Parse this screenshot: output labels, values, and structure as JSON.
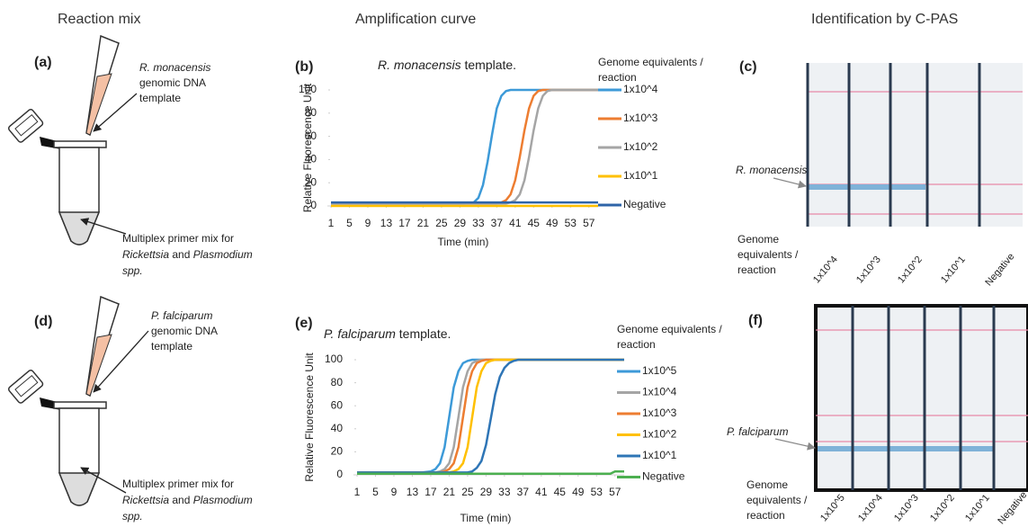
{
  "headers": {
    "reaction": "Reaction mix",
    "amplification": "Amplification curve",
    "identification": "Identification by C-PAS"
  },
  "panels": {
    "a": {
      "label": "(a)",
      "template": [
        "R. monacensis",
        "genomic DNA",
        "template"
      ],
      "primer": {
        "line1": "Multiplex primer mix for",
        "genus1": "Rickettsia",
        "and": "and",
        "genus2": "Plasmodium",
        "spp": "spp."
      }
    },
    "b": {
      "label": "(b)"
    },
    "c": {
      "label": "(c)",
      "species": "R. monacensis",
      "genome": [
        "Genome",
        "equivalents /",
        "reaction"
      ],
      "lanes": [
        "1x10^4",
        "1x10^3",
        "1x10^2",
        "1x10^1",
        "Negative"
      ]
    },
    "d": {
      "label": "(d)",
      "template": [
        "P. falciparum",
        "genomic DNA",
        "template"
      ],
      "primer": {
        "line1": "Multiplex primer mix for",
        "genus1": "Rickettsia",
        "and": "and",
        "genus2": "Plasmodium",
        "spp": "spp."
      }
    },
    "e": {
      "label": "(e)"
    },
    "f": {
      "label": "(f)",
      "species": "P. falciparum",
      "genome": [
        "Genome",
        "equivalents /",
        "reaction"
      ],
      "lanes": [
        "1x10^5",
        "1x10^4",
        "1x10^3",
        "1x10^2",
        "1x10^1",
        "Negative"
      ]
    }
  },
  "chart_data": [
    {
      "type": "line",
      "title": {
        "species": "R. monacensis",
        "text": "template."
      },
      "x_label": "Time (min)",
      "y_label": "Relative Fluorescence Unit",
      "legend_title": [
        "Genome equivalents /",
        "reaction"
      ],
      "x": [
        1,
        30,
        32,
        33,
        34,
        35,
        36,
        37,
        38,
        39,
        40,
        41,
        42,
        43,
        44,
        45,
        46,
        47,
        48,
        49,
        50,
        59
      ],
      "xlim": [
        1,
        59
      ],
      "xticks": [
        1,
        5,
        9,
        13,
        17,
        21,
        25,
        29,
        33,
        37,
        41,
        45,
        49,
        53,
        57
      ],
      "ylim": [
        0,
        100
      ],
      "yticks": [
        0,
        20,
        40,
        60,
        80,
        100
      ],
      "series": [
        {
          "name": "1x10^4",
          "color": "#3d9ad8",
          "values": [
            2,
            2,
            3,
            7,
            18,
            38,
            62,
            84,
            95,
            99,
            100,
            100,
            100,
            100,
            100,
            100,
            100,
            100,
            100,
            100,
            100,
            100
          ]
        },
        {
          "name": "1x10^3",
          "color": "#ed7d31",
          "values": [
            2,
            2,
            2,
            2,
            2,
            2,
            2,
            2,
            3,
            5,
            10,
            22,
            42,
            65,
            84,
            95,
            99,
            100,
            100,
            100,
            100,
            100
          ]
        },
        {
          "name": "1x10^2",
          "color": "#a5a5a5",
          "values": [
            2,
            2,
            2,
            2,
            2,
            2,
            2,
            2,
            2,
            2,
            3,
            5,
            10,
            22,
            42,
            65,
            84,
            95,
            99,
            100,
            100,
            100
          ]
        },
        {
          "name": "1x10^1",
          "color": "#ffc000",
          "values": [
            0,
            0,
            0,
            0,
            0,
            0,
            0,
            0,
            0,
            0,
            0,
            0,
            0,
            0,
            0,
            0,
            0,
            0,
            0,
            0,
            0,
            0
          ]
        },
        {
          "name": "Negative",
          "color": "#2e64a8",
          "values": [
            3,
            3,
            3,
            3,
            3,
            3,
            3,
            3,
            3,
            3,
            3,
            3,
            3,
            3,
            3,
            3,
            3,
            3,
            3,
            3,
            3,
            3
          ]
        }
      ]
    },
    {
      "type": "line",
      "title": {
        "species": "P. falciparum",
        "text": "template."
      },
      "x_label": "Time (min)",
      "y_label": "Relative Fluorescence Unit",
      "legend_title": [
        "Genome equivalents /",
        "reaction"
      ],
      "x": [
        1,
        15,
        17,
        18,
        19,
        20,
        21,
        22,
        23,
        24,
        25,
        26,
        27,
        28,
        29,
        30,
        31,
        32,
        33,
        34,
        35,
        36,
        37,
        56,
        57,
        59
      ],
      "xlim": [
        1,
        59
      ],
      "xticks": [
        1,
        5,
        9,
        13,
        17,
        21,
        25,
        29,
        33,
        37,
        41,
        45,
        49,
        53,
        57
      ],
      "ylim": [
        0,
        100
      ],
      "yticks": [
        0,
        20,
        40,
        60,
        80,
        100
      ],
      "series": [
        {
          "name": "1x10^5",
          "color": "#3d9ad8",
          "values": [
            2,
            2,
            3,
            5,
            10,
            24,
            50,
            76,
            90,
            97,
            99,
            100,
            100,
            100,
            100,
            100,
            100,
            100,
            100,
            100,
            100,
            100,
            100,
            100,
            100,
            100
          ]
        },
        {
          "name": "1x10^4",
          "color": "#a5a5a5",
          "values": [
            2,
            2,
            2,
            2,
            3,
            5,
            10,
            24,
            50,
            76,
            90,
            97,
            99,
            100,
            100,
            100,
            100,
            100,
            100,
            100,
            100,
            100,
            100,
            100,
            100,
            100
          ]
        },
        {
          "name": "1x10^3",
          "color": "#ed7d31",
          "values": [
            2,
            2,
            2,
            2,
            2,
            3,
            5,
            10,
            24,
            50,
            76,
            90,
            97,
            99,
            100,
            100,
            100,
            100,
            100,
            100,
            100,
            100,
            100,
            100,
            100,
            100
          ]
        },
        {
          "name": "1x10^2",
          "color": "#ffc000",
          "values": [
            2,
            2,
            2,
            2,
            2,
            2,
            2,
            3,
            5,
            10,
            24,
            50,
            76,
            90,
            97,
            99,
            100,
            100,
            100,
            100,
            100,
            100,
            100,
            100,
            100,
            100
          ]
        },
        {
          "name": "1x10^1",
          "color": "#2e75b6",
          "values": [
            2,
            2,
            2,
            2,
            2,
            2,
            2,
            2,
            2,
            2,
            2,
            3,
            6,
            12,
            26,
            48,
            70,
            85,
            93,
            97,
            99,
            100,
            100,
            100,
            100,
            100
          ]
        },
        {
          "name": "Negative",
          "color": "#4caf50",
          "values": [
            1,
            1,
            1,
            1,
            1,
            1,
            1,
            1,
            1,
            1,
            1,
            1,
            1,
            1,
            1,
            1,
            1,
            1,
            1,
            1,
            1,
            1,
            1,
            1,
            3,
            3
          ]
        }
      ]
    }
  ]
}
